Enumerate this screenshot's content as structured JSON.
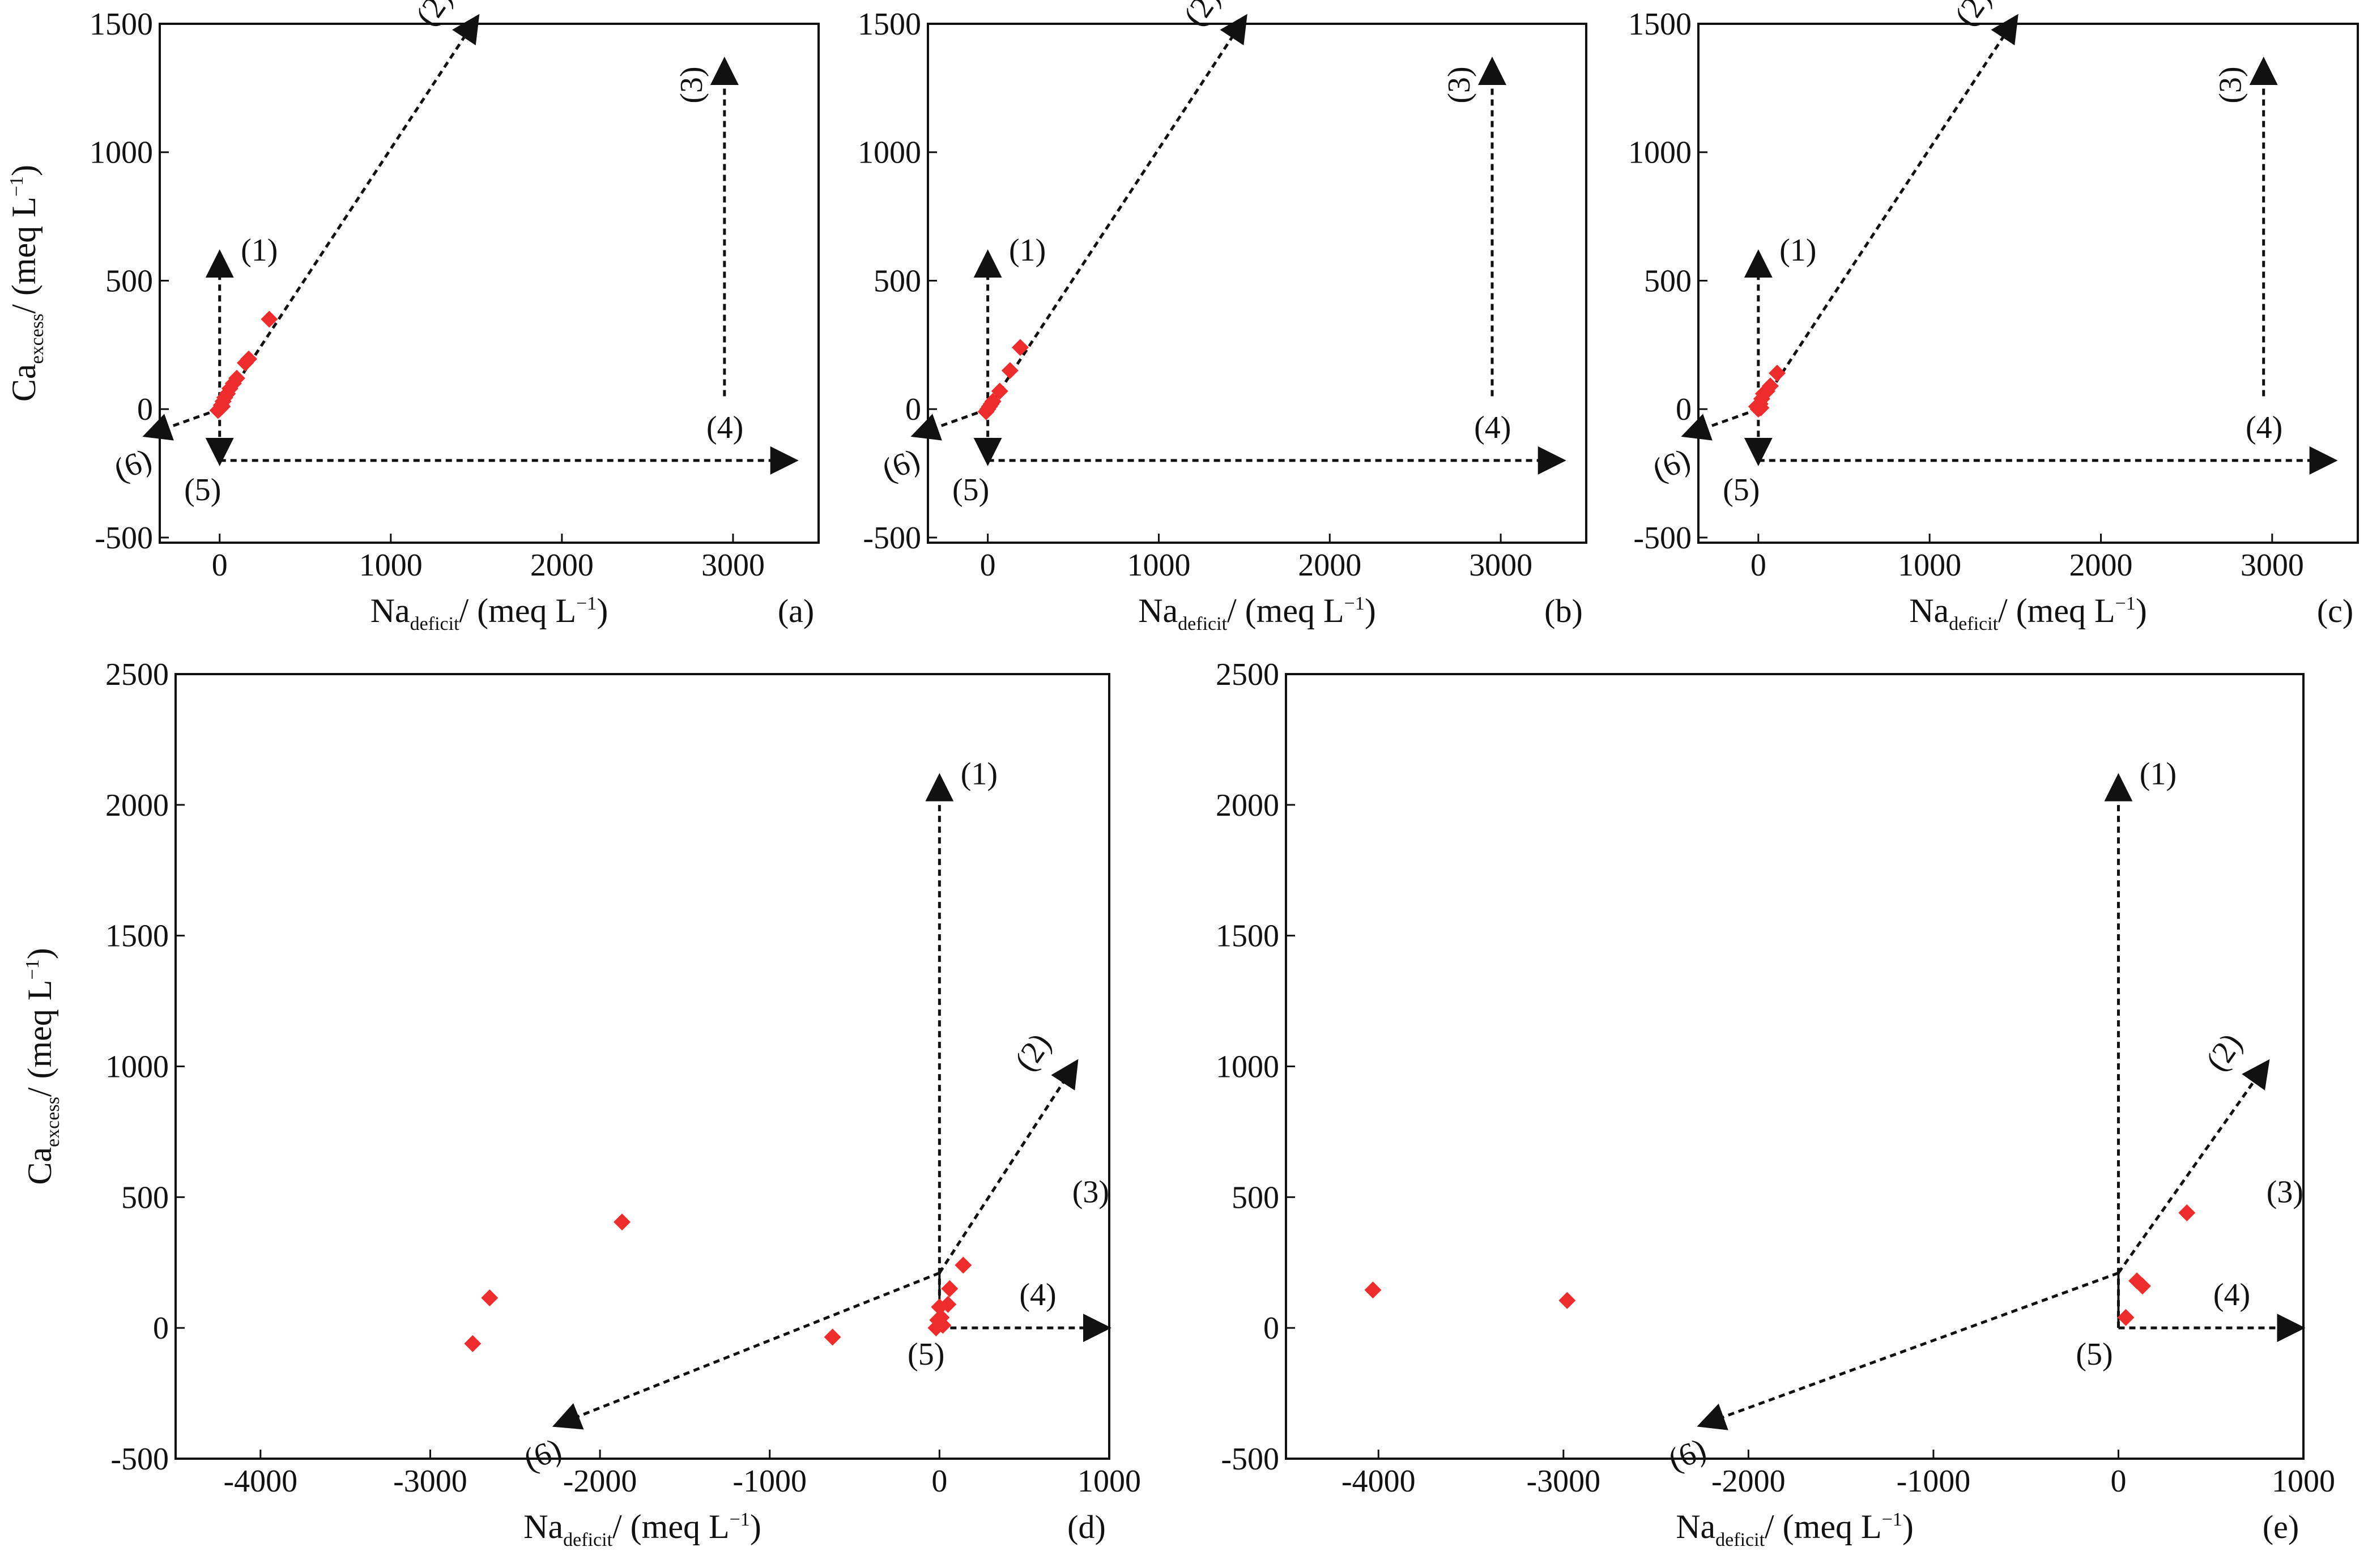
{
  "chart_data": [
    {
      "type": "scatter",
      "panel": "(a)",
      "xlabel": {
        "main": "Na",
        "sub": "deficit",
        "rest": "/ (meq L",
        "sup": "−1",
        "close": ")"
      },
      "ylabel": {
        "main": "Ca",
        "sub": "excess",
        "rest": "/ (meq L",
        "sup": "−1",
        "close": ")"
      },
      "xlim": [
        -350,
        3500
      ],
      "ylim": [
        -520,
        1500
      ],
      "xticks": [
        0,
        1000,
        2000,
        3000
      ],
      "yticks": [
        -500,
        0,
        500,
        1000,
        1500
      ],
      "xtick_labels": [
        "0",
        "1000",
        "2000",
        "3000"
      ],
      "ytick_labels": [
        "-500",
        "0",
        "500",
        "1000",
        "1500"
      ],
      "grid": false,
      "marker_color": "#ee2c2c",
      "points": [
        [
          0,
          0
        ],
        [
          10,
          15
        ],
        [
          20,
          30
        ],
        [
          30,
          45
        ],
        [
          45,
          60
        ],
        [
          60,
          80
        ],
        [
          80,
          100
        ],
        [
          100,
          120
        ],
        [
          150,
          180
        ],
        [
          170,
          195
        ],
        [
          290,
          350
        ],
        [
          5,
          5
        ],
        [
          -10,
          -5
        ],
        [
          15,
          10
        ]
      ],
      "arrows": [
        {
          "label": "(1)",
          "from": [
            0,
            0
          ],
          "to": [
            0,
            600
          ],
          "style": "dashed"
        },
        {
          "label": "(2)",
          "from": [
            0,
            0
          ],
          "to": [
            1500,
            1520
          ],
          "style": "dashed"
        },
        {
          "label": "(3)",
          "from": [
            2950,
            50
          ],
          "to": [
            2950,
            1350
          ],
          "style": "dashed"
        },
        {
          "label": "(4)",
          "from": [
            0,
            -200
          ],
          "to": [
            3350,
            -200
          ],
          "style": "dashed"
        },
        {
          "label": "(5)",
          "from": [
            0,
            0
          ],
          "to": [
            0,
            -200
          ],
          "style": "dashed"
        },
        {
          "label": "(6)",
          "from": [
            0,
            0
          ],
          "to": [
            -420,
            -100
          ],
          "style": "dashed"
        }
      ]
    },
    {
      "type": "scatter",
      "panel": "(b)",
      "xlabel": {
        "main": "Na",
        "sub": "deficit",
        "rest": "/ (meq L",
        "sup": "−1",
        "close": ")"
      },
      "ylabel": {
        "main": "",
        "sub": "",
        "rest": "",
        "sup": "",
        "close": ""
      },
      "xlim": [
        -350,
        3500
      ],
      "ylim": [
        -520,
        1500
      ],
      "xticks": [
        0,
        1000,
        2000,
        3000
      ],
      "yticks": [
        -500,
        0,
        500,
        1000,
        1500
      ],
      "xtick_labels": [
        "0",
        "1000",
        "2000",
        "3000"
      ],
      "ytick_labels": [
        "-500",
        "0",
        "500",
        "1000",
        "1500"
      ],
      "grid": false,
      "marker_color": "#ee2c2c",
      "points": [
        [
          0,
          0
        ],
        [
          10,
          10
        ],
        [
          20,
          20
        ],
        [
          -10,
          -10
        ],
        [
          30,
          30
        ],
        [
          70,
          70
        ],
        [
          130,
          150
        ],
        [
          190,
          240
        ]
      ],
      "arrows": [
        {
          "label": "(1)",
          "from": [
            0,
            0
          ],
          "to": [
            0,
            600
          ],
          "style": "dashed"
        },
        {
          "label": "(2)",
          "from": [
            0,
            0
          ],
          "to": [
            1500,
            1520
          ],
          "style": "dashed"
        },
        {
          "label": "(3)",
          "from": [
            2950,
            50
          ],
          "to": [
            2950,
            1350
          ],
          "style": "dashed"
        },
        {
          "label": "(4)",
          "from": [
            0,
            -200
          ],
          "to": [
            3350,
            -200
          ],
          "style": "dashed"
        },
        {
          "label": "(5)",
          "from": [
            0,
            0
          ],
          "to": [
            0,
            -200
          ],
          "style": "dashed"
        },
        {
          "label": "(6)",
          "from": [
            0,
            0
          ],
          "to": [
            -420,
            -100
          ],
          "style": "dashed"
        }
      ]
    },
    {
      "type": "scatter",
      "panel": "(c)",
      "xlabel": {
        "main": "Na",
        "sub": "deficit",
        "rest": "/ (meq L",
        "sup": "−1",
        "close": ")"
      },
      "ylabel": {
        "main": "",
        "sub": "",
        "rest": "",
        "sup": "",
        "close": ""
      },
      "xlim": [
        -350,
        3500
      ],
      "ylim": [
        -520,
        1500
      ],
      "xticks": [
        0,
        1000,
        2000,
        3000
      ],
      "yticks": [
        -500,
        0,
        500,
        1000,
        1500
      ],
      "xtick_labels": [
        "0",
        "1000",
        "2000",
        "3000"
      ],
      "ytick_labels": [
        "-500",
        "0",
        "500",
        "1000",
        "1500"
      ],
      "grid": false,
      "marker_color": "#ee2c2c",
      "points": [
        [
          0,
          0
        ],
        [
          10,
          20
        ],
        [
          20,
          40
        ],
        [
          30,
          60
        ],
        [
          50,
          70
        ],
        [
          70,
          90
        ],
        [
          -10,
          10
        ],
        [
          15,
          5
        ],
        [
          110,
          140
        ]
      ],
      "arrows": [
        {
          "label": "(1)",
          "from": [
            0,
            0
          ],
          "to": [
            0,
            600
          ],
          "style": "dashed"
        },
        {
          "label": "(2)",
          "from": [
            0,
            0
          ],
          "to": [
            1500,
            1520
          ],
          "style": "dashed"
        },
        {
          "label": "(3)",
          "from": [
            2950,
            50
          ],
          "to": [
            2950,
            1350
          ],
          "style": "dashed"
        },
        {
          "label": "(4)",
          "from": [
            0,
            -200
          ],
          "to": [
            3350,
            -200
          ],
          "style": "dashed"
        },
        {
          "label": "(5)",
          "from": [
            0,
            0
          ],
          "to": [
            0,
            -200
          ],
          "style": "dashed"
        },
        {
          "label": "(6)",
          "from": [
            0,
            0
          ],
          "to": [
            -420,
            -100
          ],
          "style": "dashed"
        }
      ]
    },
    {
      "type": "scatter",
      "panel": "(d)",
      "xlabel": {
        "main": "Na",
        "sub": "deficit",
        "rest": "/ (meq L",
        "sup": "−1",
        "close": ")"
      },
      "ylabel": {
        "main": "Ca",
        "sub": "excess",
        "rest": "/ (meq L",
        "sup": "−1",
        "close": ")"
      },
      "xlim": [
        -4500,
        1000
      ],
      "ylim": [
        -500,
        2500
      ],
      "xticks": [
        -4000,
        -3000,
        -2000,
        -1000,
        0,
        1000
      ],
      "yticks": [
        -500,
        0,
        500,
        1000,
        1500,
        2000,
        2500
      ],
      "xtick_labels": [
        "-4000",
        "-3000",
        "-2000",
        "-1000",
        "0",
        "1000"
      ],
      "ytick_labels": [
        "-500",
        "0",
        "500",
        "1000",
        "1500",
        "2000",
        "2500"
      ],
      "grid": false,
      "marker_color": "#ee2c2c",
      "points": [
        [
          -2750,
          -60
        ],
        [
          -2650,
          115
        ],
        [
          -1870,
          405
        ],
        [
          -630,
          -35
        ],
        [
          -20,
          0
        ],
        [
          -10,
          30
        ],
        [
          0,
          80
        ],
        [
          10,
          40
        ],
        [
          50,
          90
        ],
        [
          60,
          150
        ],
        [
          140,
          240
        ],
        [
          20,
          10
        ]
      ],
      "arrows": [
        {
          "label": "(1)",
          "from": [
            0,
            0
          ],
          "to": [
            0,
            2100
          ],
          "style": "dashed"
        },
        {
          "label": "(2)",
          "from": [
            0,
            210
          ],
          "to": [
            800,
            1010
          ],
          "style": "dashed"
        },
        {
          "label": "(3)",
          "from": null,
          "to": [
            1000,
            480
          ],
          "style": "label-only"
        },
        {
          "label": "(4)",
          "from": [
            0,
            0
          ],
          "to": [
            980,
            0
          ],
          "style": "dashed"
        },
        {
          "label": "(5)",
          "from": null,
          "to": [
            30,
            -140
          ],
          "style": "label-only"
        },
        {
          "label": "(6)",
          "from": [
            0,
            210
          ],
          "to": [
            -2250,
            -370
          ],
          "style": "dashed"
        },
        {
          "label": "",
          "from": [
            0,
            0
          ],
          "to": [
            0,
            210
          ],
          "style": "solid"
        }
      ]
    },
    {
      "type": "scatter",
      "panel": "(e)",
      "xlabel": {
        "main": "Na",
        "sub": "deficit",
        "rest": "/ (meq L",
        "sup": "−1",
        "close": ")"
      },
      "ylabel": {
        "main": "",
        "sub": "",
        "rest": "",
        "sup": "",
        "close": ""
      },
      "xlim": [
        -4500,
        1000
      ],
      "ylim": [
        -500,
        2500
      ],
      "xticks": [
        -4000,
        -3000,
        -2000,
        -1000,
        0,
        1000
      ],
      "yticks": [
        -500,
        0,
        500,
        1000,
        1500,
        2000,
        2500
      ],
      "xtick_labels": [
        "-4000",
        "-3000",
        "-2000",
        "-1000",
        "0",
        "1000"
      ],
      "ytick_labels": [
        "-500",
        "0",
        "500",
        "1000",
        "1500",
        "2000",
        "2500"
      ],
      "grid": false,
      "marker_color": "#ee2c2c",
      "points": [
        [
          -4030,
          145
        ],
        [
          -2980,
          105
        ],
        [
          40,
          40
        ],
        [
          100,
          180
        ],
        [
          130,
          160
        ],
        [
          370,
          440
        ]
      ],
      "arrows": [
        {
          "label": "(1)",
          "from": [
            0,
            0
          ],
          "to": [
            0,
            2100
          ],
          "style": "dashed"
        },
        {
          "label": "(2)",
          "from": [
            0,
            210
          ],
          "to": [
            800,
            1010
          ],
          "style": "dashed"
        },
        {
          "label": "(3)",
          "from": null,
          "to": [
            1000,
            480
          ],
          "style": "label-only"
        },
        {
          "label": "(4)",
          "from": [
            0,
            0
          ],
          "to": [
            980,
            0
          ],
          "style": "dashed"
        },
        {
          "label": "(5)",
          "from": null,
          "to": [
            -30,
            -140
          ],
          "style": "label-only"
        },
        {
          "label": "(6)",
          "from": [
            0,
            210
          ],
          "to": [
            -2250,
            -370
          ],
          "style": "dashed"
        },
        {
          "label": "",
          "from": [
            0,
            0
          ],
          "to": [
            0,
            210
          ],
          "style": "solid"
        }
      ]
    }
  ]
}
